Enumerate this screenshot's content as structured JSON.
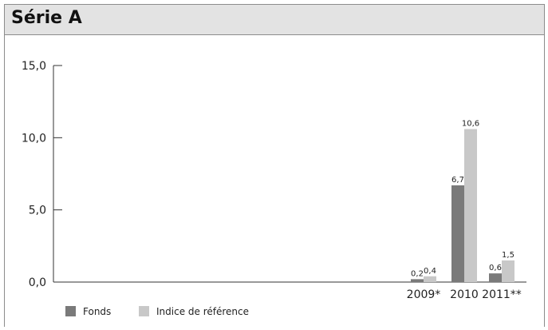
{
  "title": "Série A",
  "colors": {
    "fonds": "#7a7a7a",
    "indice": "#c8c8c8",
    "axis": "#333333"
  },
  "chart_data": {
    "type": "bar",
    "title": "Série A",
    "categories": [
      "2009*",
      "2010",
      "2011**"
    ],
    "series": [
      {
        "name": "Fonds",
        "values": [
          0.2,
          6.7,
          0.6
        ],
        "labels": [
          "0,2",
          "6,7",
          "0,6"
        ]
      },
      {
        "name": "Indice de référence",
        "values": [
          0.4,
          10.6,
          1.5
        ],
        "labels": [
          "0,4",
          "10,6",
          "1,5"
        ]
      }
    ],
    "yticks": [
      0,
      5,
      10,
      15
    ],
    "ytick_labels": [
      "0,0",
      "5,0",
      "10,0",
      "15,0"
    ],
    "ylim": [
      0,
      15
    ],
    "grid": false,
    "legend": "bottom-left"
  }
}
